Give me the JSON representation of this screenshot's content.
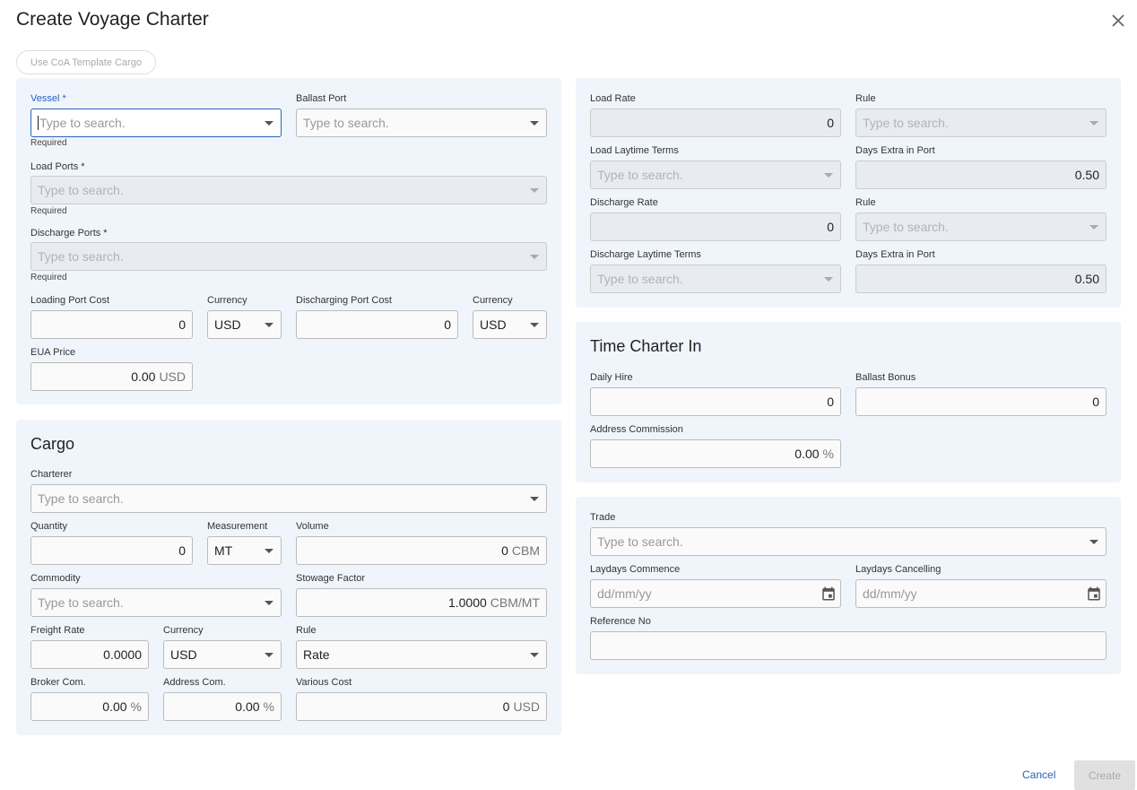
{
  "dialog": {
    "title": "Create Voyage Charter",
    "close_icon": "close-icon",
    "coa_button": "Use CoA Template Cargo"
  },
  "voyage": {
    "vessel": {
      "label": "Vessel *",
      "placeholder": "Type to search.",
      "help": "Required"
    },
    "ballast_port": {
      "label": "Ballast Port",
      "placeholder": "Type to search."
    },
    "load_ports": {
      "label": "Load Ports *",
      "placeholder": "Type to search.",
      "help": "Required"
    },
    "discharge_ports": {
      "label": "Discharge Ports *",
      "placeholder": "Type to search.",
      "help": "Required"
    },
    "loading_port_cost": {
      "label": "Loading Port Cost",
      "value": "0"
    },
    "loading_currency": {
      "label": "Currency",
      "value": "USD"
    },
    "discharging_port_cost": {
      "label": "Discharging Port Cost",
      "value": "0"
    },
    "discharging_currency": {
      "label": "Currency",
      "value": "USD"
    },
    "eua_price": {
      "label": "EUA Price",
      "value": "0.00",
      "suffix": "USD"
    }
  },
  "cargo": {
    "title": "Cargo",
    "charterer": {
      "label": "Charterer",
      "placeholder": "Type to search."
    },
    "quantity": {
      "label": "Quantity",
      "value": "0"
    },
    "measurement": {
      "label": "Measurement",
      "value": "MT"
    },
    "volume": {
      "label": "Volume",
      "value": "0",
      "suffix": "CBM"
    },
    "commodity": {
      "label": "Commodity",
      "placeholder": "Type to search."
    },
    "stowage_factor": {
      "label": "Stowage Factor",
      "value": "1.0000",
      "suffix": "CBM/MT"
    },
    "freight_rate": {
      "label": "Freight Rate",
      "value": "0.0000"
    },
    "currency": {
      "label": "Currency",
      "value": "USD"
    },
    "rule": {
      "label": "Rule",
      "value": "Rate"
    },
    "broker_com": {
      "label": "Broker Com.",
      "value": "0.00",
      "suffix": "%"
    },
    "address_com": {
      "label": "Address Com.",
      "value": "0.00",
      "suffix": "%"
    },
    "various_cost": {
      "label": "Various Cost",
      "value": "0",
      "suffix": "USD"
    }
  },
  "rates": {
    "load_rate": {
      "label": "Load Rate",
      "value": "0"
    },
    "load_rule": {
      "label": "Rule",
      "placeholder": "Type to search."
    },
    "load_laytime_terms": {
      "label": "Load Laytime Terms",
      "placeholder": "Type to search."
    },
    "load_days_extra": {
      "label": "Days Extra in Port",
      "value": "0.50"
    },
    "discharge_rate": {
      "label": "Discharge Rate",
      "value": "0"
    },
    "discharge_rule": {
      "label": "Rule",
      "placeholder": "Type to search."
    },
    "discharge_laytime_terms": {
      "label": "Discharge Laytime Terms",
      "placeholder": "Type to search."
    },
    "discharge_days_extra": {
      "label": "Days Extra in Port",
      "value": "0.50"
    }
  },
  "time_charter": {
    "title": "Time Charter In",
    "daily_hire": {
      "label": "Daily Hire",
      "value": "0"
    },
    "ballast_bonus": {
      "label": "Ballast Bonus",
      "value": "0"
    },
    "address_commission": {
      "label": "Address Commission",
      "value": "0.00",
      "suffix": "%"
    }
  },
  "trade": {
    "trade": {
      "label": "Trade",
      "placeholder": "Type to search."
    },
    "laydays_commence": {
      "label": "Laydays Commence",
      "placeholder": "dd/mm/yy"
    },
    "laydays_cancelling": {
      "label": "Laydays Cancelling",
      "placeholder": "dd/mm/yy"
    },
    "reference_no": {
      "label": "Reference No",
      "value": ""
    }
  },
  "footer": {
    "cancel": "Cancel",
    "create": "Create"
  },
  "colors": {
    "accent": "#2a62b8",
    "panel": "#f0f5fc",
    "disabled": "#e8ebf0"
  }
}
